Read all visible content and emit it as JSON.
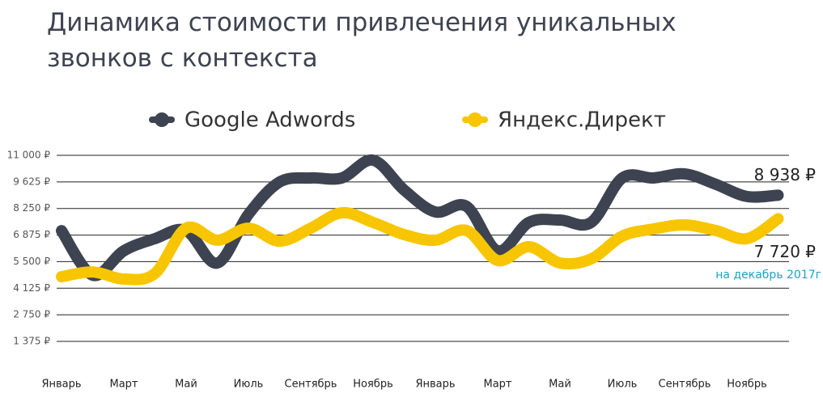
{
  "chart_data": {
    "type": "line",
    "title": "Динамика стоимости привлечения уникальных звонков с контекста",
    "categories": [
      "Январь",
      null,
      "Март",
      null,
      "Май",
      null,
      "Июль",
      null,
      "Сентябрь",
      null,
      "Ноябрь",
      null,
      "Январь",
      null,
      "Март",
      null,
      "Май",
      null,
      "Июль",
      null,
      "Сентябрь",
      null,
      "Ноябрь",
      null
    ],
    "series": [
      {
        "name": "Google Adwords",
        "color": "#3d4350",
        "values": [
          7100,
          4800,
          6060,
          6690,
          7110,
          5430,
          7950,
          9620,
          9830,
          9830,
          10750,
          9200,
          8070,
          8360,
          6060,
          7530,
          7650,
          7530,
          9830,
          9830,
          10040,
          9500,
          8870,
          8938
        ],
        "value_labels": [
          null,
          null,
          null,
          null,
          null,
          null,
          null,
          null,
          null,
          null,
          null,
          null,
          null,
          null,
          null,
          null,
          null,
          null,
          null,
          null,
          null,
          null,
          null,
          "8 938 ₽"
        ]
      },
      {
        "name": "Яндекс.Директ",
        "color": "#f7c600",
        "values": [
          4720,
          4970,
          4600,
          4890,
          7230,
          6610,
          7230,
          6560,
          7230,
          8030,
          7530,
          6900,
          6610,
          7110,
          5560,
          6270,
          5430,
          5640,
          6820,
          7190,
          7400,
          7110,
          6690,
          7720
        ],
        "value_labels": [
          null,
          null,
          null,
          null,
          null,
          null,
          null,
          null,
          null,
          null,
          null,
          null,
          null,
          null,
          null,
          null,
          null,
          null,
          null,
          null,
          null,
          null,
          null,
          "7 720 ₽"
        ]
      }
    ],
    "annotation": "на декабрь 2017г",
    "ylim": [
      1375,
      11000
    ],
    "yticks": [
      {
        "value": 1375,
        "label": "1 375 ₽"
      },
      {
        "value": 2750,
        "label": "2 750 ₽"
      },
      {
        "value": 4125,
        "label": "4 125 ₽"
      },
      {
        "value": 5500,
        "label": "5 500 ₽"
      },
      {
        "value": 6875,
        "label": "6 875 ₽"
      },
      {
        "value": 8250,
        "label": "8 250 ₽"
      },
      {
        "value": 9625,
        "label": "9 625 ₽"
      },
      {
        "value": 11000,
        "label": "11 000 ₽"
      }
    ],
    "grid": true
  }
}
